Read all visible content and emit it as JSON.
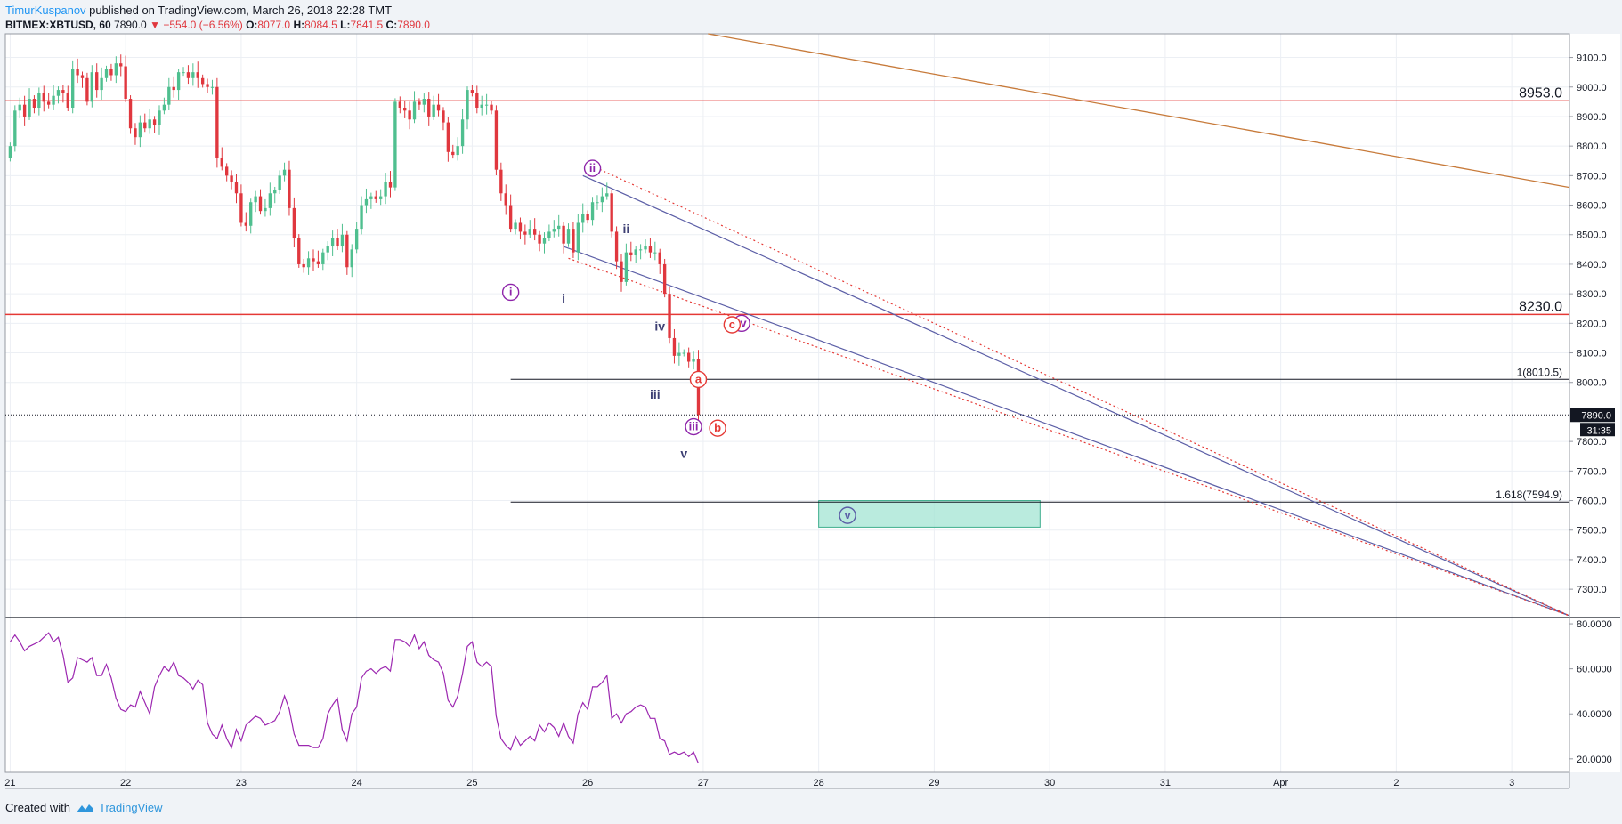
{
  "header": {
    "author": "TimurKuspanov",
    "published_text": " published on TradingView.com, March 26, 2018 22:28 TMT"
  },
  "symbol": {
    "name": "BITMEX:XBTUSD, 60",
    "last": "7890.0",
    "change": "−554.0 (−6.56%)",
    "o_label": "O:",
    "o_val": "8077.0",
    "h_label": "H:",
    "h_val": "8084.5",
    "l_label": "L:",
    "l_val": "7841.5",
    "c_label": "C:",
    "c_val": "7890.0"
  },
  "footer": {
    "created_with": "Created with",
    "brand": "TradingView"
  },
  "colors": {
    "up": "#4fbf8f",
    "down": "#e0373e",
    "rsi": "#9c27b0",
    "channel": "#5b5ea6",
    "hline": "#e53935",
    "trend": "#c77a3a",
    "zone": "#a3e4d3"
  },
  "chart_data": {
    "type": "candlestick",
    "title": "",
    "x_axis": {
      "ticks": [
        {
          "label": "21",
          "t": 0
        },
        {
          "label": "22",
          "t": 24
        },
        {
          "label": "23",
          "t": 48
        },
        {
          "label": "24",
          "t": 72
        },
        {
          "label": "25",
          "t": 96
        },
        {
          "label": "26",
          "t": 120
        },
        {
          "label": "27",
          "t": 144
        },
        {
          "label": "28",
          "t": 168
        },
        {
          "label": "29",
          "t": 192
        },
        {
          "label": "30",
          "t": 216
        },
        {
          "label": "31",
          "t": 240
        },
        {
          "label": "Apr",
          "t": 264
        },
        {
          "label": "2",
          "t": 288
        },
        {
          "label": "3",
          "t": 312
        }
      ],
      "range": [
        -1,
        324
      ]
    },
    "price_axis": {
      "range": [
        7210,
        9180
      ],
      "ticks": [
        "7300.0",
        "7400.0",
        "7500.0",
        "7600.0",
        "7700.0",
        "7800.0",
        "8000.0",
        "8100.0",
        "8200.0",
        "8300.0",
        "8400.0",
        "8500.0",
        "8600.0",
        "8700.0",
        "8800.0",
        "8900.0",
        "9000.0",
        "9100.0"
      ],
      "last_price_label": "7890.0",
      "countdown_label": "31:35"
    },
    "closes": [
      8800,
      8920,
      8940,
      8900,
      8960,
      8930,
      8980,
      8950,
      8940,
      8970,
      8990,
      8980,
      8930,
      9060,
      9040,
      9030,
      8950,
      9050,
      8990,
      9030,
      9060,
      9040,
      9080,
      9070,
      8960,
      8860,
      8830,
      8880,
      8860,
      8890,
      8870,
      8920,
      8940,
      9000,
      8990,
      9050,
      9050,
      9030,
      9050,
      9030,
      9010,
      9000,
      9000,
      8760,
      8730,
      8700,
      8680,
      8640,
      8540,
      8530,
      8610,
      8630,
      8580,
      8590,
      8640,
      8650,
      8700,
      8720,
      8590,
      8490,
      8400,
      8390,
      8420,
      8410,
      8400,
      8440,
      8460,
      8490,
      8460,
      8500,
      8390,
      8450,
      8520,
      8600,
      8620,
      8630,
      8620,
      8630,
      8680,
      8660,
      8950,
      8930,
      8920,
      8890,
      8950,
      8940,
      8960,
      8900,
      8940,
      8920,
      8880,
      8780,
      8770,
      8800,
      8890,
      8990,
      8980,
      8930,
      8940,
      8940,
      8920,
      8720,
      8640,
      8600,
      8520,
      8540,
      8510,
      8500,
      8520,
      8500,
      8470,
      8490,
      8510,
      8520,
      8530,
      8470,
      8520,
      8440,
      8540,
      8570,
      8550,
      8610,
      8610,
      8630,
      8640,
      8510,
      8410,
      8340,
      8440,
      8430,
      8450,
      8450,
      8460,
      8440,
      8440,
      8400,
      8300,
      8150,
      8090,
      8100,
      8100,
      8070,
      8080,
      7890
    ],
    "horizontal_levels": [
      {
        "price": 8953.0,
        "label": "8953.0"
      },
      {
        "price": 8230.0,
        "label": "8230.0"
      }
    ],
    "fib_levels": [
      {
        "price": 8010.5,
        "label": "1(8010.5)"
      },
      {
        "price": 7594.9,
        "label": "1.618(7594.9)"
      }
    ],
    "target_zone": {
      "t1": 168,
      "t2": 214,
      "p_top": 7600,
      "p_bottom": 7510
    },
    "trend_line": {
      "t1": 145,
      "p1": 9180,
      "t2": 324,
      "p2": 8660
    },
    "channel_lines": [
      {
        "t1": 115,
        "p1": 8460,
        "t2": 324,
        "p2": 7210,
        "color": "#5b5ea6",
        "dash": false
      },
      {
        "t1": 119,
        "p1": 8700,
        "t2": 324,
        "p2": 7210,
        "color": "#5b5ea6",
        "dash": false
      },
      {
        "t1": 116,
        "p1": 8420,
        "t2": 324,
        "p2": 7210,
        "color": "#e53935",
        "dash": true
      },
      {
        "t1": 120,
        "p1": 8740,
        "t2": 324,
        "p2": 7210,
        "color": "#e53935",
        "dash": true
      }
    ],
    "wave_labels": [
      {
        "text": "ii",
        "t": 121,
        "p": 8725,
        "style": "circle-purple"
      },
      {
        "text": "i",
        "t": 104,
        "p": 8305,
        "style": "circle-purple"
      },
      {
        "text": "iii",
        "t": 142,
        "p": 7850,
        "style": "circle-purple"
      },
      {
        "text": "iv",
        "t": 152,
        "p": 8200,
        "style": "circle-purple"
      },
      {
        "text": "v",
        "t": 174,
        "p": 7550,
        "style": "circle-blue"
      },
      {
        "text": "ii",
        "t": 128,
        "p": 8520,
        "style": "text"
      },
      {
        "text": "i",
        "t": 115,
        "p": 8285,
        "style": "text"
      },
      {
        "text": "iii",
        "t": 134,
        "p": 7960,
        "style": "text"
      },
      {
        "text": "iv",
        "t": 135,
        "p": 8190,
        "style": "text"
      },
      {
        "text": "v",
        "t": 140,
        "p": 7760,
        "style": "text"
      },
      {
        "text": "a",
        "t": 143,
        "p": 8010,
        "style": "circle-red"
      },
      {
        "text": "b",
        "t": 147,
        "p": 7845,
        "style": "circle-red"
      },
      {
        "text": "c",
        "t": 150,
        "p": 8195,
        "style": "circle-red"
      }
    ],
    "rsi": {
      "range": [
        14,
        82
      ],
      "ticks": [
        "20.0000",
        "40.0000",
        "60.0000",
        "80.0000"
      ],
      "values": [
        72,
        75,
        72,
        68,
        70,
        71,
        72,
        74,
        76,
        72,
        74,
        66,
        54,
        56,
        65,
        64,
        63,
        65,
        57,
        57,
        62,
        56,
        47,
        42,
        41,
        44,
        43,
        50,
        45,
        40,
        52,
        57,
        61,
        59,
        63,
        57,
        56,
        54,
        51,
        55,
        53,
        36,
        31,
        29,
        35,
        29,
        25,
        33,
        28,
        35,
        37,
        39,
        38,
        35,
        36,
        37,
        41,
        48,
        42,
        31,
        26,
        26,
        26,
        25,
        25,
        29,
        40,
        44,
        47,
        33,
        28,
        40,
        43,
        56,
        59,
        60,
        58,
        60,
        61,
        59,
        73,
        73,
        72,
        70,
        75,
        69,
        72,
        66,
        64,
        63,
        58,
        46,
        43,
        48,
        58,
        70,
        72,
        63,
        61,
        63,
        61,
        39,
        29,
        26,
        24,
        30,
        26,
        28,
        30,
        28,
        35,
        32,
        36,
        34,
        30,
        36,
        30,
        27,
        40,
        45,
        42,
        52,
        52,
        54,
        57,
        38,
        40,
        36,
        40,
        41,
        43,
        44,
        43,
        38,
        38,
        29,
        28,
        22,
        23,
        22,
        23,
        21,
        23,
        18
      ]
    }
  }
}
